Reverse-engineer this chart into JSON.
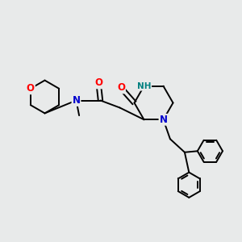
{
  "bg_color": "#e8eaea",
  "bond_color": "#000000",
  "bond_width": 1.4,
  "atom_colors": {
    "O": "#ff0000",
    "N": "#0000cd",
    "NH": "#008080",
    "C": "#000000"
  },
  "font_size_atom": 8.5,
  "font_size_nh": 7.5,
  "font_size_me": 8.0
}
